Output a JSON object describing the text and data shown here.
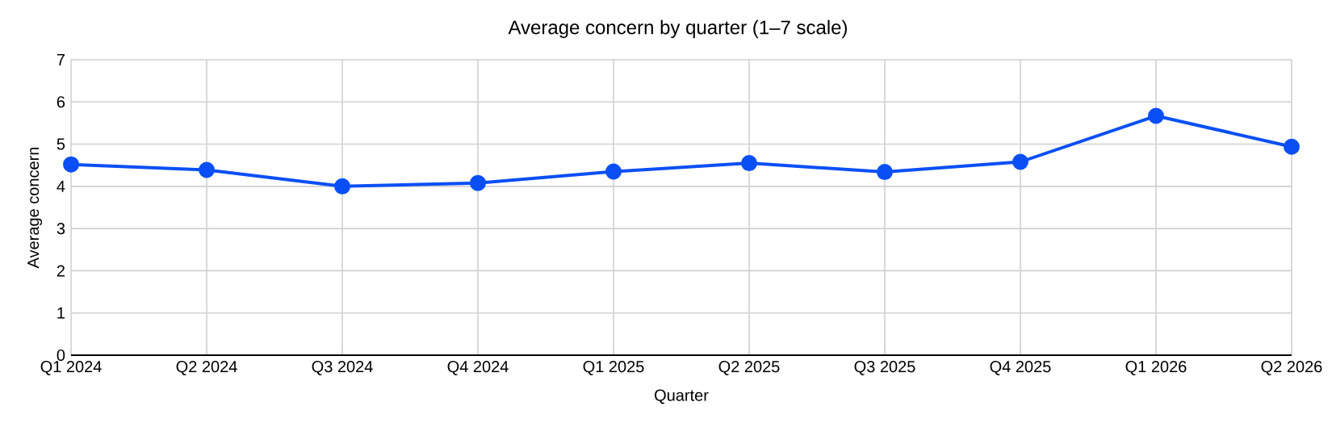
{
  "chart_data": {
    "type": "line",
    "title": "Average concern by quarter (1–7 scale)",
    "xlabel": "Quarter",
    "ylabel": "Average concern",
    "categories": [
      "Q1 2024",
      "Q2 2024",
      "Q3 2024",
      "Q4 2024",
      "Q1 2025",
      "Q2 2025",
      "Q3 2025",
      "Q4 2025",
      "Q1 2026",
      "Q2 2026"
    ],
    "series": [
      {
        "color": "#0a4ff5",
        "values": [
          4.52,
          4.39,
          4.0,
          4.08,
          4.35,
          4.55,
          4.34,
          4.58,
          5.67,
          4.94
        ]
      }
    ],
    "ylim": [
      0,
      7
    ],
    "yticks": [
      0,
      1,
      2,
      3,
      4,
      5,
      6,
      7
    ],
    "grid": true,
    "marker": "circle",
    "line_style": "solid"
  }
}
